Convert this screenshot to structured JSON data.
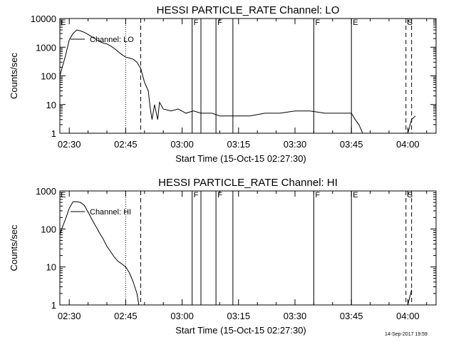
{
  "footer_stamp": "14-Sep-2017 19:59",
  "chart_data": [
    {
      "type": "line",
      "title": "HESSI PARTICLE_RATE Channel: LO",
      "xlabel": "Start Time (15-Oct-15 02:27:30)",
      "ylabel": "Counts/sec",
      "y_scale": "log",
      "ylim": [
        1,
        10000
      ],
      "xlim": [
        "02:27:30",
        "04:07:30"
      ],
      "x_ticks": [
        "02:30",
        "02:45",
        "03:00",
        "03:15",
        "03:30",
        "03:45",
        "04:00"
      ],
      "y_ticks": [
        "1",
        "10",
        "100",
        "1000",
        "10000"
      ],
      "grid": false,
      "legend": {
        "position": "top-left",
        "entries": [
          "Channel: LO"
        ]
      },
      "series": [
        {
          "name": "Channel: LO",
          "x": [
            "02:27:30",
            "02:29:00",
            "02:30:00",
            "02:31:00",
            "02:32:00",
            "02:33:00",
            "02:34:00",
            "02:35:00",
            "02:36:00",
            "02:37:00",
            "02:38:00",
            "02:39:00",
            "02:40:00",
            "02:41:00",
            "02:42:00",
            "02:43:00",
            "02:44:00",
            "02:45:00",
            "02:46:00",
            "02:47:00",
            "02:48:00",
            "02:49:00",
            "02:50:00",
            "02:51:00",
            "02:51:30",
            "02:52:00",
            "02:52:40",
            "02:53:30",
            "02:54:00",
            "02:55:00",
            "02:57:00",
            "02:59:00",
            "03:01:00",
            "03:03:00",
            "03:05:00",
            "03:08:00",
            "03:10:00",
            "03:14:00",
            "03:18:00",
            "03:22:00",
            "03:26:00",
            "03:30:00",
            "03:34:00",
            "03:38:00",
            "03:42:00",
            "03:45:00",
            "03:46:00",
            "03:47:00",
            "03:48:00",
            "03:50:00",
            "03:52:00",
            "03:54:00",
            "03:56:00",
            "03:58:00",
            "04:00:00",
            "04:01:00",
            "04:02:00"
          ],
          "y": [
            100,
            500,
            1800,
            3000,
            4000,
            3700,
            3300,
            2800,
            2300,
            1900,
            1600,
            1400,
            1300,
            1100,
            900,
            700,
            550,
            450,
            420,
            380,
            300,
            180,
            60,
            30,
            8,
            3,
            10,
            3,
            12,
            7,
            6,
            7,
            5,
            6,
            5,
            5,
            4,
            4,
            4,
            5,
            5,
            6,
            6,
            5,
            5,
            5,
            3,
            2,
            1,
            1,
            1,
            1,
            1,
            1,
            1,
            3,
            4
          ]
        }
      ],
      "annotations": [
        {
          "time": "02:45:00",
          "style": "dotted",
          "label": ""
        },
        {
          "time": "02:49:00",
          "style": "dashed",
          "label": ""
        },
        {
          "time": "03:02:40",
          "style": "solid",
          "label": "F"
        },
        {
          "time": "03:05:00",
          "style": "solid",
          "label": ""
        },
        {
          "time": "03:09:00",
          "style": "solid",
          "label": "F"
        },
        {
          "time": "03:13:30",
          "style": "solid",
          "label": ""
        },
        {
          "time": "03:35:00",
          "style": "solid",
          "label": "F"
        },
        {
          "time": "03:45:00",
          "style": "solid",
          "label": "E"
        },
        {
          "time": "03:59:30",
          "style": "dashed",
          "label": "S"
        },
        {
          "time": "04:01:00",
          "style": "dashed",
          "label": ""
        }
      ],
      "corner_marks": [
        "E"
      ]
    },
    {
      "type": "line",
      "title": "HESSI PARTICLE_RATE Channel: HI",
      "xlabel": "Start Time (15-Oct-15 02:27:30)",
      "ylabel": "Counts/sec",
      "y_scale": "log",
      "ylim": [
        1,
        1000
      ],
      "xlim": [
        "02:27:30",
        "04:07:30"
      ],
      "x_ticks": [
        "02:30",
        "02:45",
        "03:00",
        "03:15",
        "03:30",
        "03:45",
        "04:00"
      ],
      "y_ticks": [
        "1",
        "10",
        "100",
        "1000"
      ],
      "grid": false,
      "legend": {
        "position": "top-left",
        "entries": [
          "Channel: HI"
        ]
      },
      "series": [
        {
          "name": "Channel: HI",
          "x": [
            "02:27:30",
            "02:28:00",
            "02:29:00",
            "02:30:00",
            "02:31:00",
            "02:32:00",
            "02:33:00",
            "02:34:00",
            "02:35:00",
            "02:36:00",
            "02:37:00",
            "02:38:00",
            "02:39:00",
            "02:40:00",
            "02:41:00",
            "02:42:00",
            "02:43:00",
            "02:44:00",
            "02:45:00",
            "02:46:00",
            "02:47:00",
            "02:48:00",
            "02:48:30"
          ],
          "y": [
            70,
            100,
            180,
            350,
            520,
            520,
            500,
            420,
            280,
            180,
            120,
            80,
            55,
            35,
            25,
            18,
            14,
            12,
            10,
            7,
            4,
            2,
            1
          ]
        },
        {
          "name": "",
          "x": [
            "04:00:00",
            "04:00:30",
            "04:01:00"
          ],
          "y": [
            1,
            1.6,
            2.5
          ]
        }
      ],
      "annotations": [
        {
          "time": "02:45:00",
          "style": "dotted",
          "label": ""
        },
        {
          "time": "02:49:00",
          "style": "dashed",
          "label": ""
        },
        {
          "time": "03:02:40",
          "style": "solid",
          "label": "F"
        },
        {
          "time": "03:05:00",
          "style": "solid",
          "label": ""
        },
        {
          "time": "03:09:00",
          "style": "solid",
          "label": "F"
        },
        {
          "time": "03:13:30",
          "style": "solid",
          "label": ""
        },
        {
          "time": "03:35:00",
          "style": "solid",
          "label": "F"
        },
        {
          "time": "03:45:00",
          "style": "solid",
          "label": "E"
        },
        {
          "time": "03:59:30",
          "style": "dashed",
          "label": "S"
        },
        {
          "time": "04:01:00",
          "style": "dashed",
          "label": ""
        }
      ],
      "corner_marks": [
        "E"
      ]
    }
  ]
}
